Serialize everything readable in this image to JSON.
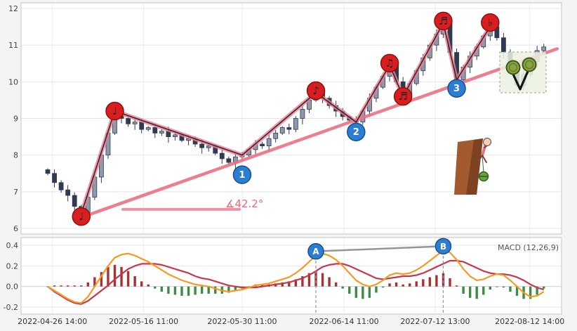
{
  "chart_data": {
    "type": "candlestick",
    "panels": [
      "price",
      "macd"
    ],
    "price_axis": {
      "min": 6,
      "max": 12,
      "ticks": [
        6,
        7,
        8,
        9,
        10,
        11,
        12
      ]
    },
    "macd_axis": {
      "ticks": [
        "-0.2",
        "0.0",
        "0.2",
        "0.4"
      ],
      "values": [
        -0.2,
        0.0,
        0.2,
        0.4
      ]
    },
    "x_ticks": [
      {
        "i": 0.7,
        "label": "2022-04-26 14:00"
      },
      {
        "i": 14.3,
        "label": "2022-05-16 11:00"
      },
      {
        "i": 29.0,
        "label": "2022-05-30 11:00"
      },
      {
        "i": 44.2,
        "label": "2022-06-14 11:00"
      },
      {
        "i": 57.8,
        "label": "2022-07-12 13:00"
      },
      {
        "i": 71.9,
        "label": "2022-08-12 14:00"
      }
    ],
    "open0": 7.6,
    "closes": [
      7.5,
      7.25,
      7.05,
      6.9,
      6.6,
      6.4,
      6.85,
      7.4,
      8.0,
      8.6,
      9.2,
      9.0,
      8.85,
      8.9,
      8.7,
      8.75,
      8.6,
      8.65,
      8.5,
      8.55,
      8.4,
      8.45,
      8.3,
      8.2,
      8.25,
      8.05,
      7.9,
      7.8,
      7.95,
      8.0,
      8.15,
      8.3,
      8.25,
      8.45,
      8.6,
      8.75,
      8.7,
      9.0,
      9.25,
      9.5,
      9.7,
      9.55,
      9.35,
      9.2,
      9.05,
      8.95,
      8.9,
      9.2,
      9.55,
      9.85,
      10.15,
      10.45,
      10.0,
      9.6,
      9.95,
      10.3,
      10.65,
      11.0,
      11.3,
      11.6,
      10.8,
      10.05,
      10.4,
      10.7,
      10.95,
      11.25,
      11.5,
      11.2,
      10.8,
      10.3,
      9.9,
      10.2,
      10.55,
      10.85,
      10.95
    ],
    "macd": {
      "label": "MACD (12,26,9)",
      "dif": [
        0.0,
        -0.04,
        -0.08,
        -0.12,
        -0.15,
        -0.16,
        -0.1,
        0.0,
        0.1,
        0.2,
        0.28,
        0.31,
        0.32,
        0.3,
        0.27,
        0.24,
        0.2,
        0.16,
        0.12,
        0.09,
        0.06,
        0.04,
        0.02,
        0.01,
        0.0,
        -0.02,
        -0.04,
        -0.05,
        -0.04,
        -0.03,
        -0.01,
        0.01,
        0.02,
        0.03,
        0.05,
        0.07,
        0.09,
        0.13,
        0.18,
        0.24,
        0.3,
        0.32,
        0.3,
        0.26,
        0.2,
        0.13,
        0.06,
        0.02,
        0.0,
        0.02,
        0.06,
        0.11,
        0.13,
        0.12,
        0.13,
        0.16,
        0.2,
        0.25,
        0.3,
        0.35,
        0.33,
        0.26,
        0.17,
        0.1,
        0.06,
        0.07,
        0.1,
        0.12,
        0.11,
        0.06,
        0.0,
        -0.06,
        -0.1,
        -0.09,
        -0.05
      ],
      "dea": [
        0.0,
        -0.05,
        -0.09,
        -0.13,
        -0.16,
        -0.17,
        -0.14,
        -0.09,
        -0.04,
        0.01,
        0.07,
        0.12,
        0.17,
        0.2,
        0.22,
        0.22,
        0.22,
        0.21,
        0.19,
        0.17,
        0.15,
        0.13,
        0.1,
        0.08,
        0.07,
        0.05,
        0.03,
        0.01,
        0.0,
        -0.01,
        -0.01,
        -0.01,
        0.0,
        0.01,
        0.02,
        0.03,
        0.04,
        0.06,
        0.08,
        0.11,
        0.15,
        0.19,
        0.21,
        0.22,
        0.22,
        0.2,
        0.17,
        0.14,
        0.11,
        0.08,
        0.07,
        0.08,
        0.09,
        0.1,
        0.1,
        0.11,
        0.13,
        0.16,
        0.19,
        0.22,
        0.25,
        0.25,
        0.24,
        0.21,
        0.18,
        0.15,
        0.13,
        0.12,
        0.12,
        0.11,
        0.09,
        0.06,
        0.02,
        -0.01,
        -0.03
      ]
    },
    "zigzag": [
      {
        "i": 5,
        "p": 6.4
      },
      {
        "i": 10,
        "p": 9.2
      },
      {
        "i": 29,
        "p": 8.0
      },
      {
        "i": 40,
        "p": 9.7
      },
      {
        "i": 46,
        "p": 8.9
      },
      {
        "i": 51,
        "p": 10.45
      },
      {
        "i": 53,
        "p": 9.6
      },
      {
        "i": 59,
        "p": 11.6
      },
      {
        "i": 61,
        "p": 10.05
      },
      {
        "i": 66,
        "p": 11.5
      }
    ],
    "trendline": {
      "from": {
        "i": 5,
        "p": 6.3
      },
      "to": {
        "i": 76,
        "p": 10.9
      }
    },
    "angle": {
      "label": "∡42.2°",
      "p": 6.52,
      "from_i": 11.2,
      "to_i": 28.6
    },
    "markers": [
      {
        "i": 5,
        "p": 6.4,
        "label": "♩",
        "kind": "note",
        "dy": 4
      },
      {
        "i": 10,
        "p": 9.2,
        "label": "♩",
        "kind": "note",
        "dy": 0
      },
      {
        "i": 29,
        "p": 8.0,
        "label": "1",
        "kind": "num",
        "dy": 28
      },
      {
        "i": 40,
        "p": 9.7,
        "label": "♪",
        "kind": "note",
        "dy": -3
      },
      {
        "i": 46,
        "p": 8.9,
        "label": "2",
        "kind": "num",
        "dy": 14
      },
      {
        "i": 51,
        "p": 10.45,
        "label": "♫",
        "kind": "note",
        "dy": -3
      },
      {
        "i": 53,
        "p": 9.6,
        "label": "♬",
        "kind": "note",
        "dy": 0
      },
      {
        "i": 59,
        "p": 11.6,
        "label": "♬",
        "kind": "note",
        "dy": -3
      },
      {
        "i": 61,
        "p": 10.05,
        "label": "3",
        "kind": "num",
        "dy": 12
      },
      {
        "i": 66,
        "p": 11.5,
        "label": "♭",
        "kind": "note",
        "dy": -6
      }
    ],
    "macd_markers": [
      {
        "i": 40,
        "v": 0.3,
        "label": "A"
      },
      {
        "i": 59,
        "v": 0.35,
        "label": "B"
      }
    ],
    "colors": {
      "up": "#8f99ab",
      "down": "#2f3b50",
      "dif": "#f59a23",
      "dea": "#c9364a",
      "hist_pos": "#a83232",
      "hist_neg": "#3c8c46",
      "pink": "#ee7f91",
      "trend": "#ee6f85",
      "zig_core": "#3c2530",
      "red_marker": "#d81e1e",
      "blue_marker": "#2a7fd4",
      "grid": "#e4e4e8",
      "grid_v": "#ededf0",
      "panel_border": "#c4c4c8",
      "angle_text": "#e86a80"
    }
  }
}
